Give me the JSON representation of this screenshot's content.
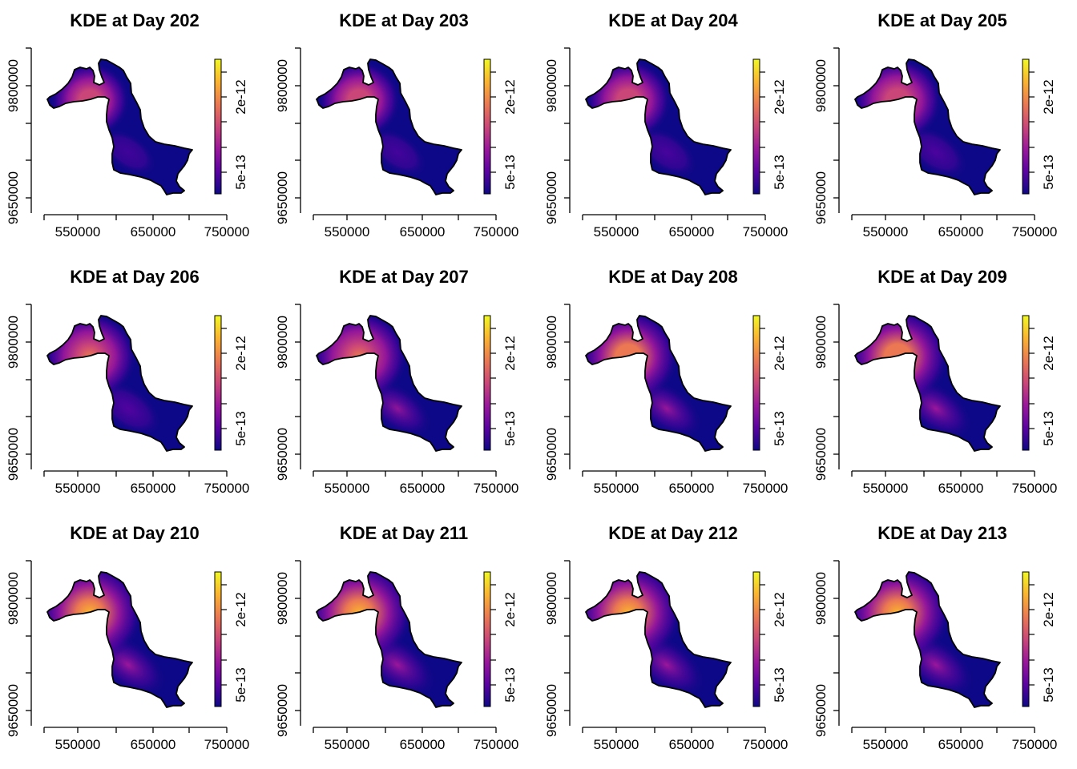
{
  "figure": {
    "layout": "3x4 grid of kernel density estimate maps",
    "title_prefix": "KDE at Day "
  },
  "legend": {
    "tick_labels": [
      "2e-12",
      "5e-13"
    ],
    "palette": [
      "#0d0887",
      "#5b02a3",
      "#9a179b",
      "#cb4678",
      "#eb7852",
      "#fbb32f",
      "#f0f921"
    ]
  },
  "chart_data": [
    {
      "type": "heatmap",
      "title": "KDE at Day 202",
      "day": 202,
      "peak_fraction": 0.3,
      "x_ticks": [
        "550000",
        "650000",
        "750000"
      ],
      "y_ticks": [
        "9650000",
        "9800000"
      ],
      "legend_ticks": [
        "2e-12",
        "5e-13"
      ],
      "xlim": [
        500000,
        750000
      ],
      "ylim": [
        9620000,
        9850000
      ],
      "grid": false
    },
    {
      "type": "heatmap",
      "title": "KDE at Day 203",
      "day": 203,
      "peak_fraction": 0.35,
      "x_ticks": [
        "550000",
        "650000",
        "750000"
      ],
      "y_ticks": [
        "9650000",
        "9800000"
      ],
      "legend_ticks": [
        "2e-12",
        "5e-13"
      ],
      "xlim": [
        500000,
        750000
      ],
      "ylim": [
        9620000,
        9850000
      ],
      "grid": false
    },
    {
      "type": "heatmap",
      "title": "KDE at Day 204",
      "day": 204,
      "peak_fraction": 0.4,
      "x_ticks": [
        "550000",
        "650000",
        "750000"
      ],
      "y_ticks": [
        "9650000",
        "9800000"
      ],
      "legend_ticks": [
        "2e-12",
        "5e-13"
      ],
      "xlim": [
        500000,
        750000
      ],
      "ylim": [
        9620000,
        9850000
      ],
      "grid": false
    },
    {
      "type": "heatmap",
      "title": "KDE at Day 205",
      "day": 205,
      "peak_fraction": 0.45,
      "x_ticks": [
        "550000",
        "650000",
        "750000"
      ],
      "y_ticks": [
        "9650000",
        "9800000"
      ],
      "legend_ticks": [
        "2e-12",
        "5e-13"
      ],
      "xlim": [
        500000,
        750000
      ],
      "ylim": [
        9620000,
        9850000
      ],
      "grid": false
    },
    {
      "type": "heatmap",
      "title": "KDE at Day 206",
      "day": 206,
      "peak_fraction": 0.52,
      "x_ticks": [
        "550000",
        "650000",
        "750000"
      ],
      "y_ticks": [
        "9650000",
        "9800000"
      ],
      "legend_ticks": [
        "2e-12",
        "5e-13"
      ],
      "xlim": [
        500000,
        750000
      ],
      "ylim": [
        9620000,
        9850000
      ],
      "grid": false
    },
    {
      "type": "heatmap",
      "title": "KDE at Day 207",
      "day": 207,
      "peak_fraction": 0.57,
      "x_ticks": [
        "550000",
        "650000",
        "750000"
      ],
      "y_ticks": [
        "9650000",
        "9800000"
      ],
      "legend_ticks": [
        "2e-12",
        "5e-13"
      ],
      "xlim": [
        500000,
        750000
      ],
      "ylim": [
        9620000,
        9850000
      ],
      "grid": false
    },
    {
      "type": "heatmap",
      "title": "KDE at Day 208",
      "day": 208,
      "peak_fraction": 0.62,
      "x_ticks": [
        "550000",
        "650000",
        "750000"
      ],
      "y_ticks": [
        "9650000",
        "9800000"
      ],
      "legend_ticks": [
        "2e-12",
        "5e-13"
      ],
      "xlim": [
        500000,
        750000
      ],
      "ylim": [
        9620000,
        9850000
      ],
      "grid": false
    },
    {
      "type": "heatmap",
      "title": "KDE at Day 209",
      "day": 209,
      "peak_fraction": 0.66,
      "x_ticks": [
        "550000",
        "650000",
        "750000"
      ],
      "y_ticks": [
        "9650000",
        "9800000"
      ],
      "legend_ticks": [
        "2e-12",
        "5e-13"
      ],
      "xlim": [
        500000,
        750000
      ],
      "ylim": [
        9620000,
        9850000
      ],
      "grid": false
    },
    {
      "type": "heatmap",
      "title": "KDE at Day 210",
      "day": 210,
      "peak_fraction": 0.72,
      "x_ticks": [
        "550000",
        "650000",
        "750000"
      ],
      "y_ticks": [
        "9650000",
        "9800000"
      ],
      "legend_ticks": [
        "2e-12",
        "5e-13"
      ],
      "xlim": [
        500000,
        750000
      ],
      "ylim": [
        9620000,
        9850000
      ],
      "grid": false
    },
    {
      "type": "heatmap",
      "title": "KDE at Day 211",
      "day": 211,
      "peak_fraction": 0.74,
      "x_ticks": [
        "550000",
        "650000",
        "750000"
      ],
      "y_ticks": [
        "9650000",
        "9800000"
      ],
      "legend_ticks": [
        "2e-12",
        "5e-13"
      ],
      "xlim": [
        500000,
        750000
      ],
      "ylim": [
        9620000,
        9850000
      ],
      "grid": false
    },
    {
      "type": "heatmap",
      "title": "KDE at Day 212",
      "day": 212,
      "peak_fraction": 0.73,
      "x_ticks": [
        "550000",
        "650000",
        "750000"
      ],
      "y_ticks": [
        "9650000",
        "9800000"
      ],
      "legend_ticks": [
        "2e-12",
        "5e-13"
      ],
      "xlim": [
        500000,
        750000
      ],
      "ylim": [
        9620000,
        9850000
      ],
      "grid": false
    },
    {
      "type": "heatmap",
      "title": "KDE at Day 213",
      "day": 213,
      "peak_fraction": 0.72,
      "x_ticks": [
        "550000",
        "650000",
        "750000"
      ],
      "y_ticks": [
        "9650000",
        "9800000"
      ],
      "legend_ticks": [
        "2e-12",
        "5e-13"
      ],
      "xlim": [
        500000,
        750000
      ],
      "ylim": [
        9620000,
        9850000
      ],
      "grid": false
    }
  ]
}
